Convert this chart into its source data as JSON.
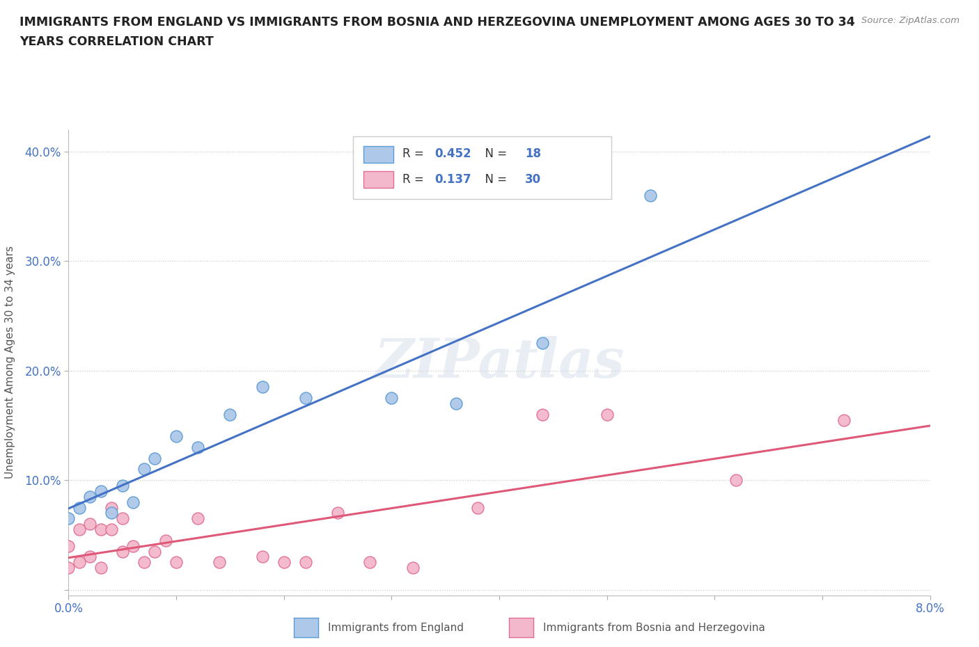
{
  "title_line1": "IMMIGRANTS FROM ENGLAND VS IMMIGRANTS FROM BOSNIA AND HERZEGOVINA UNEMPLOYMENT AMONG AGES 30 TO 34",
  "title_line2": "YEARS CORRELATION CHART",
  "source_text": "Source: ZipAtlas.com",
  "ylabel": "Unemployment Among Ages 30 to 34 years",
  "xlim": [
    0.0,
    0.08
  ],
  "ylim": [
    -0.005,
    0.42
  ],
  "x_ticks": [
    0.0,
    0.01,
    0.02,
    0.03,
    0.04,
    0.05,
    0.06,
    0.07,
    0.08
  ],
  "x_tick_labels": [
    "0.0%",
    "",
    "",
    "",
    "",
    "",
    "",
    "",
    "8.0%"
  ],
  "y_ticks": [
    0.0,
    0.1,
    0.2,
    0.3,
    0.4
  ],
  "y_tick_labels": [
    "",
    "10.0%",
    "20.0%",
    "30.0%",
    "40.0%"
  ],
  "england_color": "#adc8e8",
  "england_edge_color": "#5b9bd5",
  "england_line_color": "#4472c4",
  "bosnia_color": "#f4b8cc",
  "bosnia_edge_color": "#e07090",
  "bosnia_line_color": "#e05878",
  "england_R": 0.452,
  "england_N": 18,
  "bosnia_R": 0.137,
  "bosnia_N": 30,
  "watermark": "ZIPatlas",
  "england_scatter_x": [
    0.0,
    0.001,
    0.002,
    0.003,
    0.004,
    0.005,
    0.006,
    0.007,
    0.008,
    0.01,
    0.012,
    0.015,
    0.018,
    0.022,
    0.03,
    0.036,
    0.044,
    0.054
  ],
  "england_scatter_y": [
    0.065,
    0.075,
    0.085,
    0.09,
    0.07,
    0.095,
    0.08,
    0.11,
    0.12,
    0.14,
    0.13,
    0.16,
    0.185,
    0.175,
    0.175,
    0.17,
    0.225,
    0.36
  ],
  "bosnia_scatter_x": [
    0.0,
    0.0,
    0.001,
    0.001,
    0.002,
    0.002,
    0.003,
    0.003,
    0.004,
    0.004,
    0.005,
    0.005,
    0.006,
    0.007,
    0.008,
    0.009,
    0.01,
    0.012,
    0.014,
    0.018,
    0.02,
    0.022,
    0.025,
    0.028,
    0.032,
    0.038,
    0.044,
    0.05,
    0.062,
    0.072
  ],
  "bosnia_scatter_y": [
    0.02,
    0.04,
    0.025,
    0.055,
    0.03,
    0.06,
    0.02,
    0.055,
    0.055,
    0.075,
    0.065,
    0.035,
    0.04,
    0.025,
    0.035,
    0.045,
    0.025,
    0.065,
    0.025,
    0.03,
    0.025,
    0.025,
    0.07,
    0.025,
    0.02,
    0.075,
    0.16,
    0.16,
    0.1,
    0.155
  ]
}
